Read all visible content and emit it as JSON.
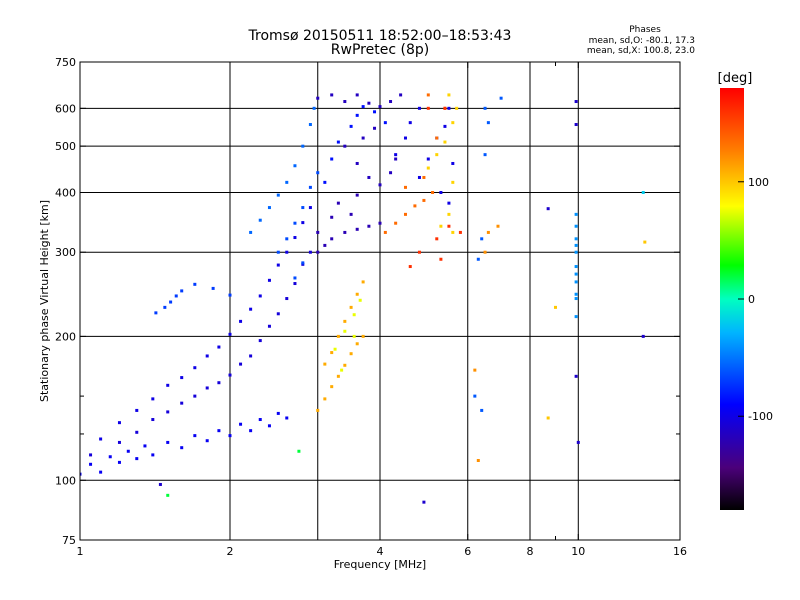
{
  "chart_data": {
    "type": "scatter",
    "title": "Tromsø 20150511 18:52:00–18:53:43",
    "subtitle": "RwPretec (8p)",
    "xlabel": "Frequency [MHz]",
    "ylabel": "Stationary phase Virtual Height [km]",
    "x_scale": "log",
    "y_scale": "log",
    "xlim": [
      1,
      16
    ],
    "ylim": [
      75,
      750
    ],
    "x_ticks": [
      1,
      2,
      4,
      6,
      8,
      10,
      16
    ],
    "x_tick_labels": [
      "1",
      "2",
      "4",
      "6",
      "8",
      "10",
      "16"
    ],
    "x_gridlines": [
      2,
      3,
      4,
      6,
      8,
      10
    ],
    "x_minor_ticks": [
      9
    ],
    "y_ticks": [
      75,
      100,
      200,
      300,
      400,
      500,
      600,
      750
    ],
    "y_tick_labels": [
      "75",
      "100",
      "200",
      "300",
      "400",
      "500",
      "600",
      "750"
    ],
    "y_gridlines": [
      100,
      200,
      300,
      400,
      500,
      600
    ],
    "y_minor_ticks": [
      125,
      150
    ],
    "grid": true,
    "stats_header": "Phases",
    "stats_lines": [
      "mean, sd,O: -80.1, 17.3",
      "mean, sd,X: 100.8, 23.0"
    ],
    "colorbar": {
      "label": "[deg]",
      "range": [
        -180,
        180
      ],
      "ticks": [
        100,
        0,
        -100
      ],
      "tick_labels": [
        "100",
        "0",
        "-100"
      ],
      "colormap": "rainbow"
    },
    "clusters": [
      {
        "phase": -95,
        "points": [
          [
            1.0,
            103
          ],
          [
            1.05,
            108
          ],
          [
            1.1,
            104
          ],
          [
            1.15,
            112
          ],
          [
            1.2,
            109
          ],
          [
            1.25,
            115
          ],
          [
            1.3,
            111
          ],
          [
            1.35,
            118
          ],
          [
            1.4,
            113
          ],
          [
            1.5,
            120
          ],
          [
            1.6,
            117
          ],
          [
            1.7,
            124
          ],
          [
            1.8,
            121
          ],
          [
            1.9,
            127
          ],
          [
            2.0,
            124
          ],
          [
            2.1,
            131
          ],
          [
            2.2,
            127
          ],
          [
            2.3,
            134
          ],
          [
            2.4,
            130
          ],
          [
            2.5,
            138
          ],
          [
            2.6,
            135
          ]
        ]
      },
      {
        "phase": -105,
        "points": [
          [
            1.05,
            113
          ],
          [
            1.2,
            120
          ],
          [
            1.3,
            126
          ],
          [
            1.4,
            134
          ],
          [
            1.5,
            139
          ],
          [
            1.6,
            145
          ],
          [
            1.7,
            150
          ],
          [
            1.8,
            156
          ],
          [
            1.9,
            160
          ],
          [
            2.0,
            166
          ],
          [
            2.1,
            175
          ],
          [
            2.2,
            182
          ],
          [
            2.3,
            196
          ],
          [
            2.4,
            210
          ],
          [
            2.5,
            223
          ],
          [
            2.6,
            240
          ],
          [
            2.7,
            258
          ],
          [
            2.8,
            283
          ],
          [
            2.9,
            300
          ]
        ]
      },
      {
        "phase": -100,
        "points": [
          [
            1.1,
            122
          ],
          [
            1.2,
            132
          ],
          [
            1.3,
            140
          ],
          [
            1.4,
            148
          ],
          [
            1.5,
            158
          ],
          [
            1.6,
            164
          ],
          [
            1.7,
            172
          ],
          [
            1.8,
            182
          ],
          [
            1.9,
            190
          ],
          [
            2.0,
            202
          ],
          [
            2.1,
            215
          ],
          [
            2.2,
            228
          ],
          [
            2.3,
            243
          ],
          [
            2.4,
            262
          ],
          [
            2.5,
            282
          ],
          [
            2.6,
            300
          ],
          [
            2.7,
            322
          ],
          [
            2.8,
            346
          ],
          [
            2.9,
            372
          ]
        ]
      },
      {
        "phase": -70,
        "points": [
          [
            1.42,
            224
          ],
          [
            1.48,
            230
          ],
          [
            1.52,
            236
          ],
          [
            1.56,
            243
          ],
          [
            1.6,
            249
          ],
          [
            1.7,
            257
          ],
          [
            1.85,
            252
          ],
          [
            2.0,
            244
          ]
        ]
      },
      {
        "phase": -55,
        "points": [
          [
            2.2,
            330
          ],
          [
            2.3,
            350
          ],
          [
            2.4,
            372
          ],
          [
            2.5,
            395
          ],
          [
            2.6,
            420
          ],
          [
            2.7,
            455
          ],
          [
            2.8,
            500
          ],
          [
            2.9,
            555
          ],
          [
            2.95,
            600
          ]
        ]
      },
      {
        "phase": -65,
        "points": [
          [
            2.5,
            300
          ],
          [
            2.6,
            320
          ],
          [
            2.7,
            345
          ],
          [
            2.8,
            372
          ],
          [
            2.9,
            410
          ],
          [
            3.0,
            440
          ],
          [
            2.7,
            265
          ],
          [
            2.8,
            285
          ]
        ]
      },
      {
        "phase": -120,
        "points": [
          [
            3.0,
            300
          ],
          [
            3.1,
            310
          ],
          [
            3.2,
            320
          ],
          [
            3.4,
            330
          ],
          [
            3.6,
            335
          ],
          [
            3.8,
            340
          ],
          [
            4.0,
            345
          ],
          [
            3.0,
            330
          ],
          [
            3.2,
            355
          ],
          [
            3.5,
            360
          ],
          [
            3.3,
            380
          ],
          [
            3.6,
            395
          ]
        ]
      },
      {
        "phase": -115,
        "points": [
          [
            3.0,
            630
          ],
          [
            3.2,
            640
          ],
          [
            3.4,
            620
          ],
          [
            3.6,
            640
          ],
          [
            3.8,
            615
          ],
          [
            4.0,
            605
          ],
          [
            4.2,
            620
          ],
          [
            4.4,
            640
          ],
          [
            3.4,
            500
          ],
          [
            3.6,
            460
          ],
          [
            3.8,
            430
          ],
          [
            4.0,
            415
          ],
          [
            4.2,
            440
          ],
          [
            4.3,
            470
          ],
          [
            3.7,
            520
          ],
          [
            3.9,
            545
          ]
        ]
      },
      {
        "phase": -85,
        "points": [
          [
            3.1,
            420
          ],
          [
            3.2,
            470
          ],
          [
            3.3,
            510
          ],
          [
            3.5,
            550
          ],
          [
            3.6,
            580
          ],
          [
            3.7,
            605
          ],
          [
            3.9,
            590
          ],
          [
            4.1,
            560
          ]
        ]
      },
      {
        "phase": -100,
        "points": [
          [
            4.3,
            480
          ],
          [
            4.5,
            520
          ],
          [
            4.6,
            560
          ],
          [
            4.8,
            600
          ],
          [
            4.8,
            430
          ],
          [
            5.0,
            470
          ],
          [
            5.2,
            520
          ],
          [
            5.4,
            550
          ],
          [
            5.5,
            600
          ],
          [
            5.6,
            460
          ],
          [
            5.5,
            380
          ],
          [
            5.3,
            400
          ]
        ]
      },
      {
        "phase": 110,
        "points": [
          [
            3.0,
            140
          ],
          [
            3.1,
            148
          ],
          [
            3.2,
            157
          ],
          [
            3.3,
            165
          ],
          [
            3.4,
            174
          ],
          [
            3.5,
            184
          ],
          [
            3.6,
            193
          ],
          [
            3.7,
            200
          ],
          [
            3.3,
            200
          ],
          [
            3.4,
            215
          ],
          [
            3.5,
            230
          ],
          [
            3.6,
            245
          ],
          [
            3.7,
            260
          ],
          [
            3.2,
            185
          ],
          [
            3.1,
            175
          ]
        ]
      },
      {
        "phase": 75,
        "points": [
          [
            3.25,
            188
          ],
          [
            3.4,
            205
          ],
          [
            3.55,
            222
          ],
          [
            3.65,
            238
          ],
          [
            3.55,
            200
          ],
          [
            3.35,
            170
          ]
        ]
      },
      {
        "phase": 135,
        "points": [
          [
            4.1,
            330
          ],
          [
            4.3,
            345
          ],
          [
            4.5,
            360
          ],
          [
            4.7,
            375
          ],
          [
            4.9,
            385
          ],
          [
            5.1,
            400
          ],
          [
            4.5,
            410
          ],
          [
            4.9,
            430
          ],
          [
            5.2,
            520
          ],
          [
            5.4,
            600
          ],
          [
            5.0,
            640
          ]
        ]
      },
      {
        "phase": 95,
        "points": [
          [
            5.0,
            450
          ],
          [
            5.2,
            480
          ],
          [
            5.4,
            510
          ],
          [
            5.6,
            560
          ],
          [
            5.6,
            420
          ],
          [
            5.7,
            600
          ],
          [
            5.5,
            640
          ],
          [
            5.3,
            340
          ],
          [
            5.5,
            360
          ],
          [
            5.6,
            330
          ]
        ]
      },
      {
        "phase": 160,
        "points": [
          [
            5.2,
            320
          ],
          [
            5.5,
            340
          ],
          [
            5.8,
            330
          ],
          [
            5.3,
            290
          ],
          [
            5.4,
            600
          ],
          [
            5.0,
            600
          ],
          [
            4.6,
            280
          ],
          [
            4.8,
            300
          ]
        ]
      },
      {
        "phase": -60,
        "points": [
          [
            6.3,
            290
          ],
          [
            6.4,
            320
          ],
          [
            6.5,
            600
          ],
          [
            6.6,
            560
          ],
          [
            6.5,
            480
          ],
          [
            6.2,
            150
          ],
          [
            6.4,
            140
          ],
          [
            7.0,
            630
          ]
        ]
      },
      {
        "phase": 120,
        "points": [
          [
            6.2,
            170
          ],
          [
            6.3,
            110
          ],
          [
            6.5,
            300
          ],
          [
            6.6,
            330
          ],
          [
            6.9,
            340
          ]
        ]
      },
      {
        "phase": -40,
        "points": [
          [
            9.9,
            220
          ],
          [
            9.9,
            240
          ],
          [
            9.9,
            260
          ],
          [
            9.9,
            280
          ],
          [
            9.9,
            300
          ],
          [
            9.9,
            320
          ],
          [
            9.9,
            340
          ],
          [
            9.9,
            360
          ],
          [
            9.9,
            245
          ],
          [
            9.9,
            270
          ],
          [
            9.9,
            310
          ]
        ]
      },
      {
        "phase": -110,
        "points": [
          [
            9.9,
            555
          ],
          [
            9.9,
            620
          ],
          [
            10.0,
            120
          ],
          [
            9.9,
            165
          ],
          [
            8.7,
            370
          ],
          [
            13.5,
            200
          ]
        ]
      },
      {
        "phase": 100,
        "points": [
          [
            8.7,
            135
          ],
          [
            9.0,
            230
          ],
          [
            13.6,
            315
          ]
        ]
      },
      {
        "phase": -20,
        "points": [
          [
            13.5,
            400
          ]
        ]
      },
      {
        "phase": 20,
        "points": [
          [
            1.5,
            93
          ],
          [
            2.75,
            115
          ]
        ]
      },
      {
        "phase": -110,
        "points": [
          [
            4.9,
            90
          ],
          [
            1.45,
            98
          ]
        ]
      }
    ]
  }
}
